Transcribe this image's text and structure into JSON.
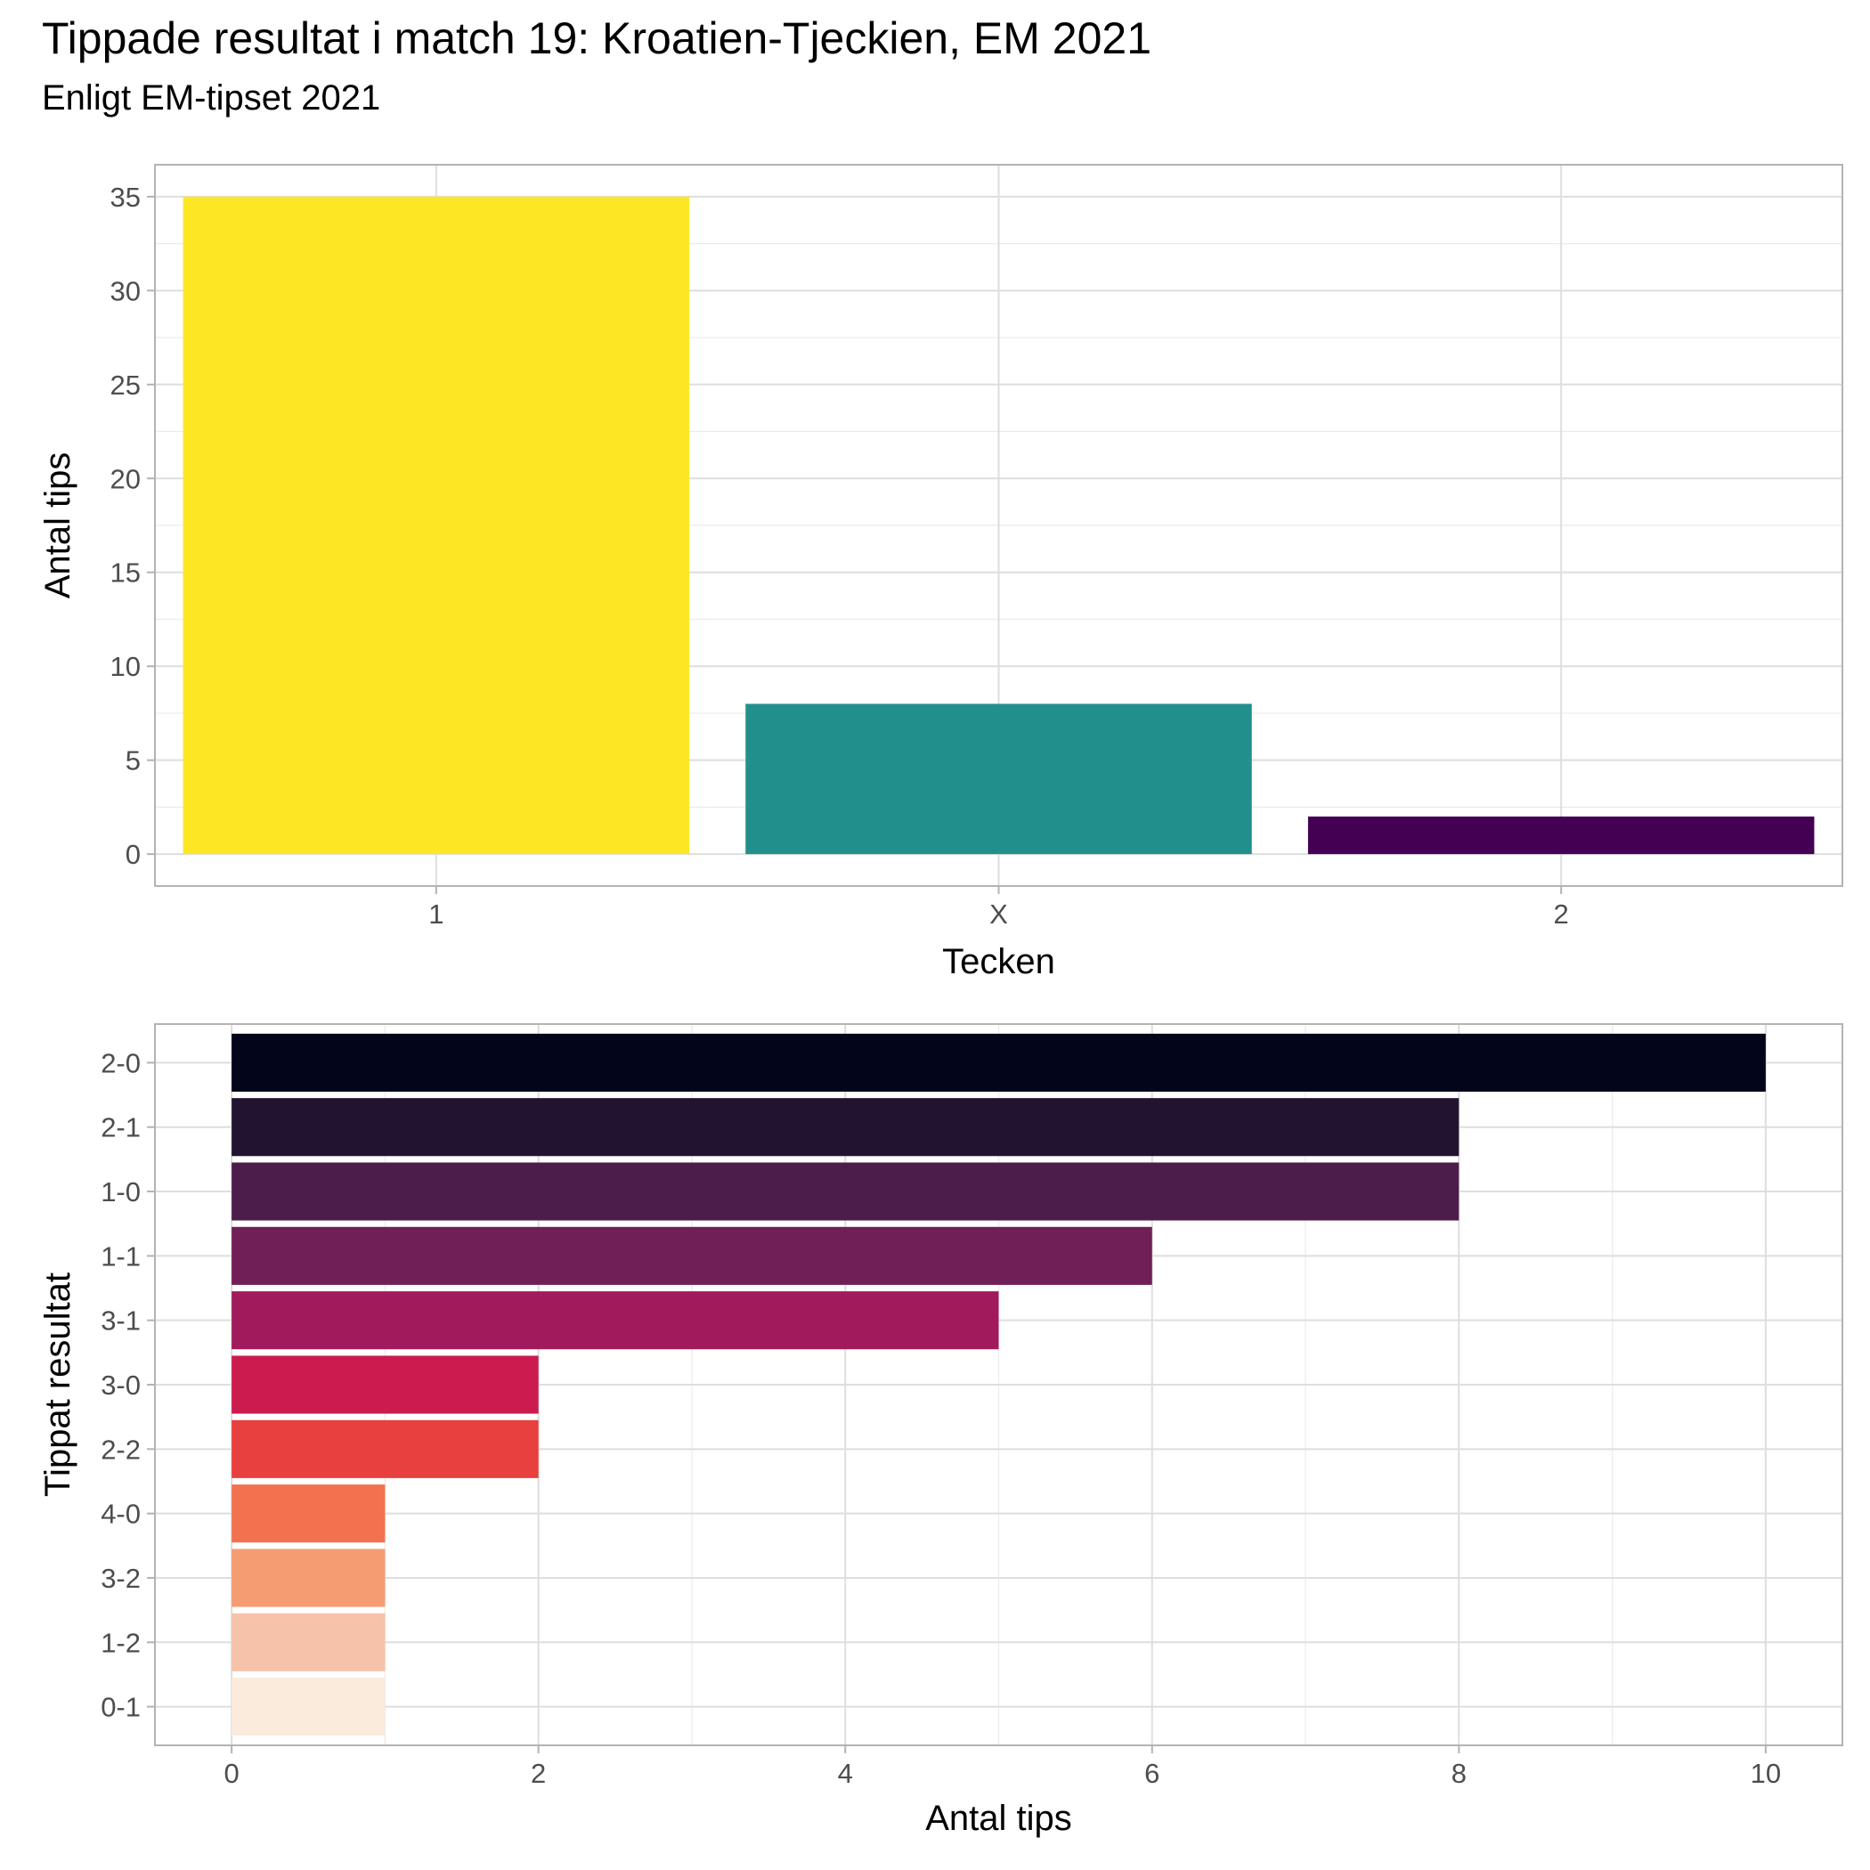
{
  "title": "Tippade resultat i match 19: Kroatien-Tjeckien, EM 2021",
  "subtitle": "Enligt EM-tipset 2021",
  "chart_data": [
    {
      "type": "bar",
      "orientation": "vertical",
      "categories": [
        "1",
        "X",
        "2"
      ],
      "values": [
        35,
        8,
        2
      ],
      "colors": [
        "#FDE725",
        "#21908C",
        "#440154"
      ],
      "xlabel": "Tecken",
      "ylabel": "Antal tips",
      "ylim": [
        -1.7,
        36.7
      ],
      "yticks": [
        0,
        5,
        10,
        15,
        20,
        25,
        30,
        35
      ],
      "grid": true,
      "legend": "none"
    },
    {
      "type": "bar",
      "orientation": "horizontal",
      "categories": [
        "2-0",
        "2-1",
        "1-0",
        "1-1",
        "3-1",
        "3-0",
        "2-2",
        "4-0",
        "3-2",
        "1-2",
        "0-1"
      ],
      "values": [
        10,
        8,
        8,
        6,
        5,
        2,
        2,
        1,
        1,
        1,
        1
      ],
      "colors": [
        "#03051A",
        "#221331",
        "#4C1D4B",
        "#711F57",
        "#A11A5B",
        "#CB1B4F",
        "#E83F3F",
        "#F2724F",
        "#F69C73",
        "#F6C3AA",
        "#FAEBDD"
      ],
      "xlabel": "Antal tips",
      "ylabel": "Tippat resultat",
      "xlim": [
        -0.5,
        10.5
      ],
      "xticks": [
        0,
        2,
        4,
        6,
        8,
        10
      ],
      "grid": true,
      "legend": "none"
    }
  ]
}
